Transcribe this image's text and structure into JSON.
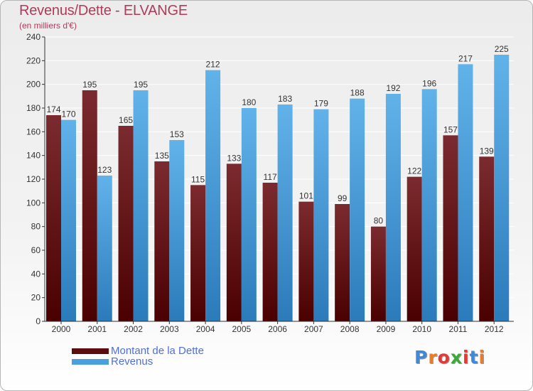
{
  "title": "Revenus/Dette - ELVANGE",
  "subtitle": "(en milliers d'€)",
  "logo": {
    "text": "Proxiti",
    "letter_colors": [
      "#3c8ad9",
      "#e77d29",
      "#e23a35",
      "#3aaa3a",
      "#e23a35",
      "#3c8ad9",
      "#e77d29"
    ]
  },
  "colors": {
    "debt_bar": "#7b1f22",
    "debt_bar_dark": "#4a0000",
    "revenue_bar": "#5aa9e3",
    "revenue_bar_dark": "#2d78b5",
    "axis": "#333333",
    "grid": "#ffffff"
  },
  "chart_data": {
    "type": "bar",
    "categories": [
      "2000",
      "2001",
      "2002",
      "2003",
      "2004",
      "2005",
      "2006",
      "2007",
      "2008",
      "2009",
      "2010",
      "2011",
      "2012"
    ],
    "series": [
      {
        "name": "Montant de la Dette",
        "values": [
          174,
          195,
          165,
          135,
          115,
          133,
          117,
          101,
          99,
          80,
          122,
          157,
          139
        ]
      },
      {
        "name": "Revenus",
        "values": [
          170,
          123,
          195,
          153,
          212,
          180,
          183,
          179,
          188,
          192,
          196,
          217,
          225
        ]
      }
    ],
    "ylim": [
      0,
      240
    ],
    "yticks": [
      0,
      20,
      40,
      60,
      80,
      100,
      120,
      140,
      160,
      180,
      200,
      220,
      240
    ],
    "grid": true,
    "legend_position": "bottom-left",
    "data_labels": true
  }
}
